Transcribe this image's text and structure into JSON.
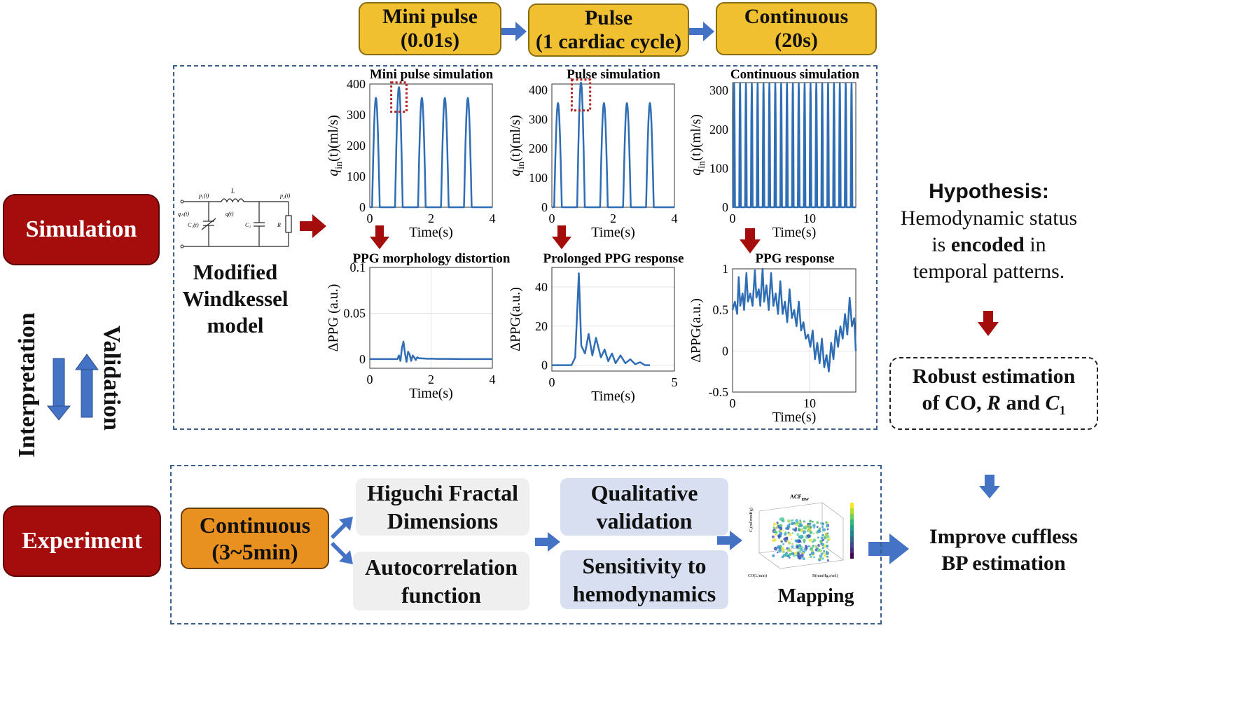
{
  "top_flow": {
    "box1": {
      "line1": "Mini pulse",
      "line2": "(0.01s)"
    },
    "box2": {
      "line1": "Pulse",
      "line2": "(1 cardiac cycle)"
    },
    "box3": {
      "line1": "Continuous",
      "line2": "(20s)"
    }
  },
  "left": {
    "simulation": "Simulation",
    "experiment": "Experiment",
    "interpretation": "Interpretation",
    "validation": "Validation"
  },
  "model": {
    "line1": "Modified",
    "line2": "Windkessel",
    "line3": "model",
    "circuit": {
      "p1": "p₁(t)",
      "L": "L",
      "p2": "p₂(t)",
      "qin": "qᵢₙ(t)",
      "C1": "C₁(t)",
      "q": "q(t)",
      "C2": "C₂",
      "R": "R"
    }
  },
  "plots_top": [
    {
      "title": "Mini pulse simulation",
      "ylabel": "q_in(t)(ml/s)",
      "xlabel": "Time(s)"
    },
    {
      "title": "Pulse simulation",
      "ylabel": "q_in(t)(ml/s)",
      "xlabel": "Time(s)"
    },
    {
      "title": "Continuous simulation",
      "ylabel": "q_in(t)(ml/s)",
      "xlabel": "Time(s)"
    }
  ],
  "plots_bottom": [
    {
      "title": "PPG morphology distortion",
      "ylabel": "ΔPPG (a.u.)",
      "xlabel": "Time(s)"
    },
    {
      "title": "Prolonged PPG response",
      "ylabel": "ΔPPG(a.u.)",
      "xlabel": "Time(s)"
    },
    {
      "title": "PPG response",
      "ylabel": "ΔPPG(a.u.)",
      "xlabel": "Time(s)"
    }
  ],
  "chart_data": [
    {
      "type": "line",
      "title": "Mini pulse simulation",
      "xlabel": "Time(s)",
      "ylabel": "q_in(t)(ml/s)",
      "xlim": [
        0,
        4
      ],
      "ylim": [
        0,
        400
      ],
      "xticks": [
        "0",
        "2",
        "4"
      ],
      "yticks": [
        "0",
        "100",
        "200",
        "300",
        "400"
      ],
      "pulse_peaks_x": [
        0.2,
        0.95,
        1.7,
        2.45,
        3.2
      ],
      "pulse_peaks_y": [
        355,
        390,
        355,
        355,
        355
      ],
      "pulse_width": 0.5,
      "highlight": {
        "x": [
          0.7,
          1.2
        ],
        "y": [
          310,
          405
        ]
      }
    },
    {
      "type": "line",
      "title": "Pulse simulation",
      "xlabel": "Time(s)",
      "ylabel": "q_in(t)(ml/s)",
      "xlim": [
        0,
        4
      ],
      "ylim": [
        0,
        420
      ],
      "xticks": [
        "0",
        "2",
        "4"
      ],
      "yticks": [
        "0",
        "100",
        "200",
        "300",
        "400"
      ],
      "pulse_peaks_x": [
        0.2,
        0.95,
        1.7,
        2.45,
        3.2
      ],
      "pulse_peaks_y": [
        355,
        425,
        355,
        355,
        355
      ],
      "pulse_width": 0.5,
      "highlight": {
        "x": [
          0.65,
          1.25
        ],
        "y": [
          330,
          435
        ]
      }
    },
    {
      "type": "line",
      "title": "Continuous simulation",
      "xlabel": "Time(s)",
      "ylabel": "q_in(t)(ml/s)",
      "xlim": [
        0,
        16
      ],
      "ylim": [
        0,
        320
      ],
      "xticks": [
        "0",
        "10"
      ],
      "yticks": [
        "0",
        "100",
        "200",
        "300"
      ],
      "pulse_count": 21,
      "pulse_peak": 318,
      "pulse_width": 0.22
    },
    {
      "type": "line",
      "title": "PPG morphology distortion",
      "xlabel": "Time(s)",
      "ylabel": "ΔPPG (a.u.)",
      "xlim": [
        0,
        4
      ],
      "ylim": [
        -0.01,
        0.1
      ],
      "xticks": [
        "0",
        "2",
        "4"
      ],
      "yticks": [
        "0",
        "0.05",
        "0.1"
      ],
      "x": [
        0,
        0.9,
        0.95,
        1.0,
        1.05,
        1.1,
        1.15,
        1.2,
        1.25,
        1.3,
        1.35,
        1.4,
        1.45,
        1.5,
        1.55,
        1.6,
        1.7,
        1.8,
        1.9,
        2.0,
        2.2,
        2.5,
        3.0,
        3.5,
        4.0
      ],
      "y": [
        0,
        0,
        0.004,
        -0.002,
        0.012,
        0.019,
        0.006,
        -0.003,
        0.008,
        0.005,
        -0.002,
        0.004,
        0.002,
        -0.001,
        0.002,
        0.001,
        0.0008,
        0.0006,
        0.0003,
        0.0005,
        0.0002,
        0.0002,
        0,
        0,
        0
      ]
    },
    {
      "type": "line",
      "title": "Prolonged PPG response",
      "xlabel": "Time(s)",
      "ylabel": "ΔPPG(a.u.)",
      "xlim": [
        0,
        5
      ],
      "ylim": [
        -3,
        50
      ],
      "xticks": [
        "0",
        "5"
      ],
      "yticks": [
        "0",
        "20",
        "40"
      ],
      "x": [
        0,
        0.8,
        0.95,
        1.1,
        1.2,
        1.35,
        1.5,
        1.65,
        1.8,
        2.0,
        2.15,
        2.3,
        2.45,
        2.6,
        2.8,
        3.0,
        3.2,
        3.4,
        3.6,
        3.8,
        4.0
      ],
      "y": [
        0,
        0,
        4,
        47,
        10,
        6,
        16,
        5,
        14,
        4,
        8,
        2,
        6,
        1,
        5,
        1,
        3,
        0.5,
        1.5,
        0,
        0
      ]
    },
    {
      "type": "line",
      "title": "PPG response",
      "xlabel": "Time(s)",
      "ylabel": "ΔPPG(a.u.)",
      "xlim": [
        0,
        16
      ],
      "ylim": [
        -0.5,
        1
      ],
      "xticks": [
        "0",
        "10"
      ],
      "yticks": [
        "-0.5",
        "0",
        "0.5",
        "1"
      ],
      "x": [
        0,
        0.3,
        0.6,
        0.8,
        1.0,
        1.3,
        1.5,
        1.8,
        2.0,
        2.3,
        2.6,
        2.9,
        3.1,
        3.4,
        3.6,
        3.9,
        4.1,
        4.4,
        4.7,
        5.0,
        5.3,
        5.6,
        5.9,
        6.2,
        6.5,
        6.8,
        7.1,
        7.4,
        7.7,
        8.0,
        8.3,
        8.6,
        8.9,
        9.2,
        9.5,
        9.8,
        10.1,
        10.4,
        10.7,
        11.0,
        11.3,
        11.6,
        11.9,
        12.2,
        12.5,
        12.8,
        13.1,
        13.4,
        13.7,
        14.0,
        14.3,
        14.6,
        14.9,
        15.2,
        15.5,
        15.8,
        16.0
      ],
      "y": [
        0.5,
        0.6,
        0.45,
        0.9,
        0.55,
        0.7,
        0.5,
        0.95,
        0.6,
        0.7,
        0.55,
        0.98,
        0.65,
        0.75,
        0.55,
        1.0,
        0.6,
        0.8,
        0.5,
        0.95,
        0.55,
        0.7,
        0.45,
        0.85,
        0.45,
        0.6,
        0.35,
        0.75,
        0.4,
        0.5,
        0.3,
        0.6,
        0.25,
        0.35,
        0.15,
        0.2,
        0.05,
        0.25,
        -0.1,
        0.1,
        -0.15,
        0.15,
        -0.2,
        -0.05,
        -0.25,
        0.1,
        -0.1,
        0.25,
        0.05,
        0.3,
        0.15,
        0.45,
        0.2,
        0.65,
        0.3,
        0.4,
        0.0
      ]
    }
  ],
  "hypothesis": {
    "title": "Hypothesis:",
    "line1": "Hemodynamic  status",
    "line2_a": "is ",
    "line2_b": "encoded",
    "line2_c": " in",
    "line3": "temporal patterns."
  },
  "robust": {
    "line1": "Robust estimation",
    "line2_a": "of CO, ",
    "line2_R": "R",
    "line2_b": " and ",
    "line2_C": "C",
    "line2_sub": "1"
  },
  "improve": {
    "line1": "Improve cuffless",
    "line2": "BP estimation"
  },
  "experiment_flow": {
    "continuous": {
      "line1": "Continuous",
      "line2": "(3~5min)"
    },
    "higuchi": {
      "line1": "Higuchi Fractal",
      "line2": "Dimensions"
    },
    "acf": {
      "line1": "Autocorrelation",
      "line2": "function"
    },
    "qualitative": {
      "line1": "Qualitative",
      "line2": "validation"
    },
    "sensitivity": {
      "line1": "Sensitivity to",
      "line2": "hemodynamics"
    },
    "mapping": "Mapping",
    "mapping_title": "ACF",
    "mapping_title_sub": "HW",
    "mapping_xlabel": "CO(L/min)",
    "mapping_ylabel": "C₁(ml/mmHg)",
    "mapping_zlabel": "R(mmHg.s/ml)"
  },
  "colors": {
    "red": "#A50D0D",
    "yellow": "#F0C030",
    "orange": "#E89020",
    "arrow_blue": "#4472C4",
    "arrow_red": "#A50D0D",
    "plot_line": "#2F6DB5"
  }
}
